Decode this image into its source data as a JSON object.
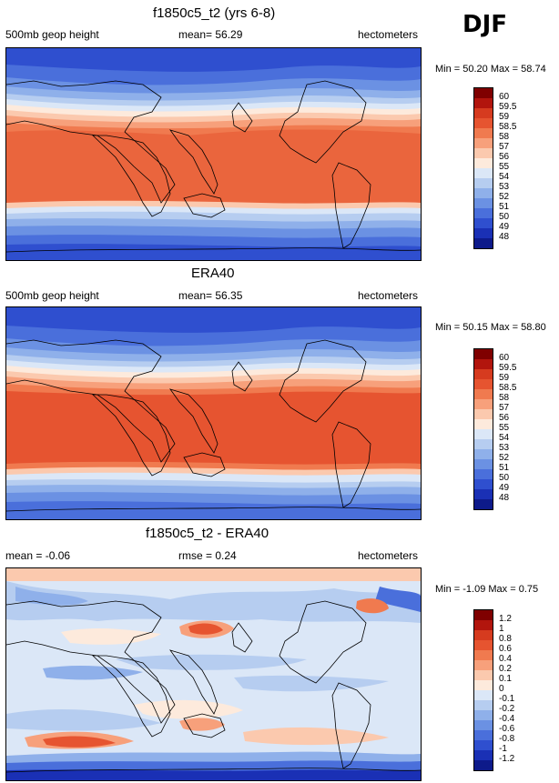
{
  "season": "DJF",
  "panels": [
    {
      "title": "f1850c5_t2 (yrs 6-8)",
      "left": "500mb geop height",
      "center": "mean=  56.29",
      "right": "hectometers",
      "minmax": "Min =  50.20 Max =  58.74",
      "levels": [
        "60",
        "59.5",
        "59",
        "58.5",
        "58",
        "57",
        "56",
        "55",
        "54",
        "53",
        "52",
        "51",
        "50",
        "49",
        "48"
      ]
    },
    {
      "title": "ERA40",
      "left": "500mb geop height",
      "center": "mean=  56.35",
      "right": "hectometers",
      "minmax": "Min =  50.15 Max =  58.80",
      "levels": [
        "60",
        "59.5",
        "59",
        "58.5",
        "58",
        "57",
        "56",
        "55",
        "54",
        "53",
        "52",
        "51",
        "50",
        "49",
        "48"
      ]
    },
    {
      "title": "f1850c5_t2 - ERA40",
      "left": "mean =  -0.06",
      "center": "rmse =   0.24",
      "right": "hectometers",
      "minmax": "Min =  -1.09 Max =   0.75",
      "levels": [
        "1.2",
        "1",
        "0.8",
        "0.6",
        "0.4",
        "0.2",
        "0.1",
        "0",
        "-0.1",
        "-0.2",
        "-0.4",
        "-0.6",
        "-0.8",
        "-1",
        "-1.2"
      ]
    }
  ],
  "palette": [
    "#7f0000",
    "#b2150d",
    "#d63b1f",
    "#e65430",
    "#f07a4f",
    "#f7a07b",
    "#fbc9ae",
    "#fdeadc",
    "#dbe7f7",
    "#b6cdf0",
    "#8fb0ea",
    "#6b91e3",
    "#4a6fdb",
    "#2f4fcf",
    "#1a30b5",
    "#0d1a8a"
  ]
}
